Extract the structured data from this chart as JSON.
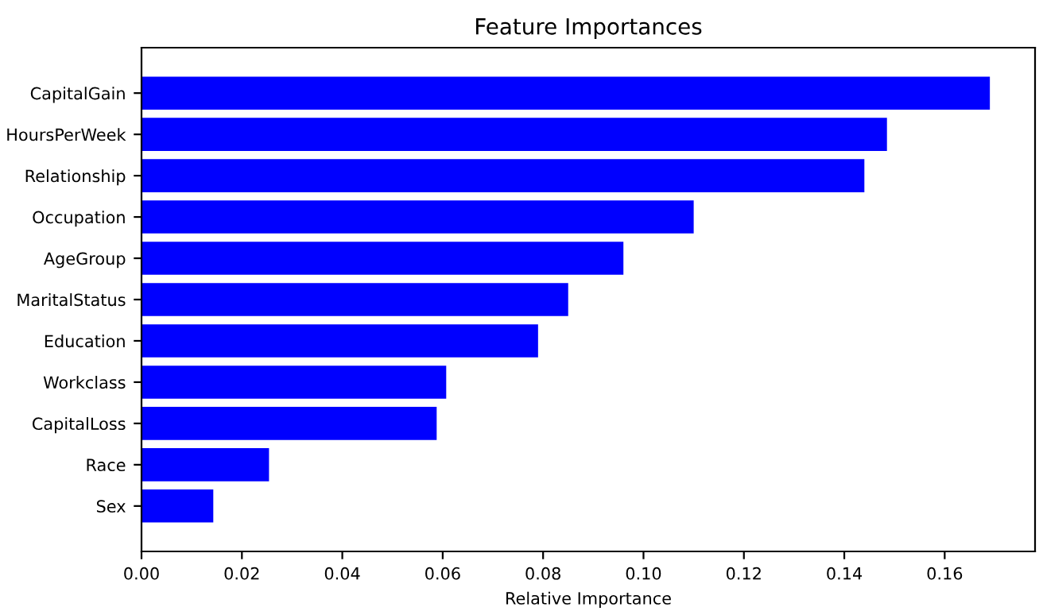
{
  "chart_data": {
    "type": "bar",
    "orientation": "horizontal",
    "title": "Feature Importances",
    "xlabel": "Relative Importance",
    "categories": [
      "CapitalGain",
      "HoursPerWeek",
      "Relationship",
      "Occupation",
      "AgeGroup",
      "MaritalStatus",
      "Education",
      "Workclass",
      "CapitalLoss",
      "Race",
      "Sex"
    ],
    "values": [
      0.169,
      0.1485,
      0.144,
      0.11,
      0.096,
      0.085,
      0.079,
      0.0607,
      0.0588,
      0.0254,
      0.0143
    ],
    "color": "#0000ff",
    "xlim": [
      0,
      0.178
    ],
    "xticks": [
      {
        "value": 0,
        "label": "0.00"
      },
      {
        "value": 0.02,
        "label": "0.02"
      },
      {
        "value": 0.04,
        "label": "0.04"
      },
      {
        "value": 0.06,
        "label": "0.06"
      },
      {
        "value": 0.08,
        "label": "0.08"
      },
      {
        "value": 0.1,
        "label": "0.10"
      },
      {
        "value": 0.12,
        "label": "0.12"
      },
      {
        "value": 0.14,
        "label": "0.14"
      },
      {
        "value": 0.16,
        "label": "0.16"
      }
    ],
    "grid": false
  }
}
